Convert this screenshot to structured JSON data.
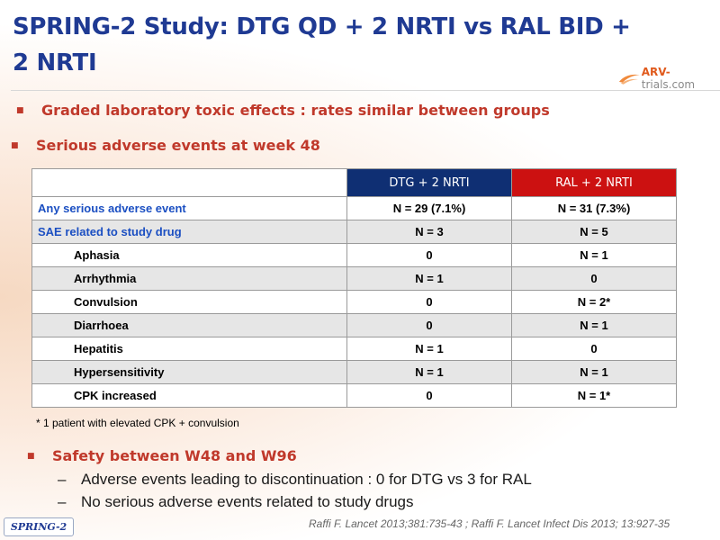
{
  "title": "SPRING-2 Study: DTG QD + 2 NRTI vs RAL BID + 2 NRTI",
  "logo": {
    "arv": "ARV-",
    "rest": "trials.com"
  },
  "bullets": {
    "b1": "Graded laboratory toxic effects : rates similar between groups",
    "b2": "Serious adverse events at week 48",
    "b3": "Safety between W48 and W96"
  },
  "table": {
    "headers": [
      "",
      "DTG + 2 NRTI",
      "RAL + 2 NRTI"
    ],
    "rows": [
      {
        "label": "Any serious adverse event",
        "dtg": "N = 29 (7.1%)",
        "ral": "N = 31 (7.3%)"
      },
      {
        "label": "SAE related to study drug",
        "dtg": "N = 3",
        "ral": "N = 5"
      },
      {
        "label": "Aphasia",
        "dtg": "0",
        "ral": "N = 1"
      },
      {
        "label": "Arrhythmia",
        "dtg": "N = 1",
        "ral": "0"
      },
      {
        "label": "Convulsion",
        "dtg": "0",
        "ral": "N = 2*"
      },
      {
        "label": "Diarrhoea",
        "dtg": "0",
        "ral": "N = 1"
      },
      {
        "label": "Hepatitis",
        "dtg": "N = 1",
        "ral": "0"
      },
      {
        "label": "Hypersensitivity",
        "dtg": "N = 1",
        "ral": "N = 1"
      },
      {
        "label": "CPK increased",
        "dtg": "0",
        "ral": "N = 1*"
      }
    ]
  },
  "footnote": "* 1 patient with elevated CPK + convulsion",
  "sub_bullets": [
    "Adverse events leading to discontinuation : 0 for DTG vs 3 for RAL",
    "No serious adverse events related to study drugs"
  ],
  "badge": "SPRING-2",
  "reference": "Raffi F. Lancet 2013;381:735-43 ; Raffi F. Lancet Infect Dis 2013; 13:927-35",
  "colors": {
    "title": "#1f3a93",
    "bullet": "#c0392b",
    "dtg_header": "#0f2f73",
    "ral_header": "#cc1111",
    "label_blue": "#1b4fc2"
  }
}
